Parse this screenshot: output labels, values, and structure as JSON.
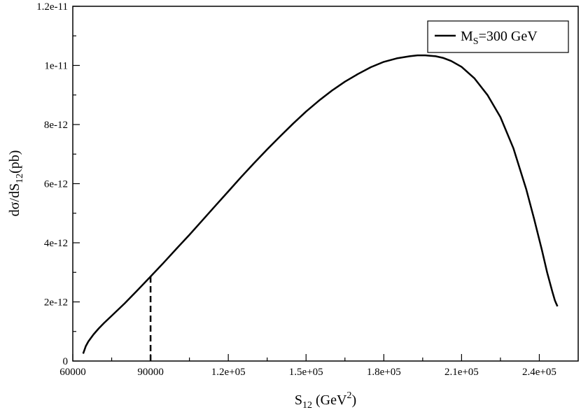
{
  "chart_data": {
    "type": "line",
    "xlabel": {
      "base": "S",
      "sub": "12",
      "rest": " (GeV",
      "sup": "2",
      "close": ")"
    },
    "ylabel": {
      "base": "dσ/dS",
      "sub": "12",
      "rest": "(pb)"
    },
    "xlim": [
      60000,
      255000
    ],
    "ylim": [
      0,
      1.2e-11
    ],
    "xticks": [
      {
        "value": 60000,
        "label": "60000"
      },
      {
        "value": 90000,
        "label": "90000"
      },
      {
        "value": 120000,
        "label": "1.2e+05"
      },
      {
        "value": 150000,
        "label": "1.5e+05"
      },
      {
        "value": 180000,
        "label": "1.8e+05"
      },
      {
        "value": 210000,
        "label": "2.1e+05"
      },
      {
        "value": 240000,
        "label": "2.4e+05"
      }
    ],
    "yticks": [
      {
        "value": 0,
        "label": "0"
      },
      {
        "value": 2e-12,
        "label": "2e-12"
      },
      {
        "value": 4e-12,
        "label": "4e-12"
      },
      {
        "value": 6e-12,
        "label": "6e-12"
      },
      {
        "value": 8e-12,
        "label": "8e-12"
      },
      {
        "value": 1e-11,
        "label": "1e-11"
      },
      {
        "value": 1.2e-11,
        "label": "1.2e-11"
      }
    ],
    "grid": false,
    "legend_position": "top-right",
    "series": [
      {
        "legend": {
          "base": "M",
          "sub": "S",
          "rest": "=300 GeV"
        },
        "color": "#000000",
        "style": "solid",
        "x": [
          64000,
          65000,
          66000,
          68000,
          70000,
          72000,
          75000,
          80000,
          85000,
          90000,
          95000,
          100000,
          105000,
          110000,
          115000,
          120000,
          125000,
          130000,
          135000,
          140000,
          145000,
          150000,
          155000,
          160000,
          165000,
          170000,
          175000,
          180000,
          185000,
          190000,
          193000,
          196000,
          200000,
          203000,
          206000,
          210000,
          215000,
          220000,
          225000,
          230000,
          235000,
          238000,
          241000,
          243000,
          245000,
          246000,
          246500,
          247000
        ],
        "y": [
          2.5e-13,
          5e-13,
          6.6e-13,
          9e-13,
          1.1e-12,
          1.28e-12,
          1.53e-12,
          1.95e-12,
          2.4e-12,
          2.86e-12,
          3.32e-12,
          3.8e-12,
          4.27e-12,
          4.76e-12,
          5.25e-12,
          5.74e-12,
          6.23e-12,
          6.7e-12,
          7.16e-12,
          7.6e-12,
          8.03e-12,
          8.44e-12,
          8.81e-12,
          9.15e-12,
          9.45e-12,
          9.71e-12,
          9.94e-12,
          1.012e-11,
          1.024e-11,
          1.031e-11,
          1.034e-11,
          1.034e-11,
          1.031e-11,
          1.025e-11,
          1.015e-11,
          9.95e-12,
          9.56e-12,
          9e-12,
          8.25e-12,
          7.2e-12,
          5.8e-12,
          4.8e-12,
          3.75e-12,
          3e-12,
          2.35e-12,
          2.05e-12,
          1.95e-12,
          1.85e-12
        ]
      },
      {
        "legend": null,
        "color": "#000000",
        "style": "dashed",
        "x": [
          90000,
          90000
        ],
        "y": [
          0,
          2.86e-12
        ]
      }
    ]
  }
}
